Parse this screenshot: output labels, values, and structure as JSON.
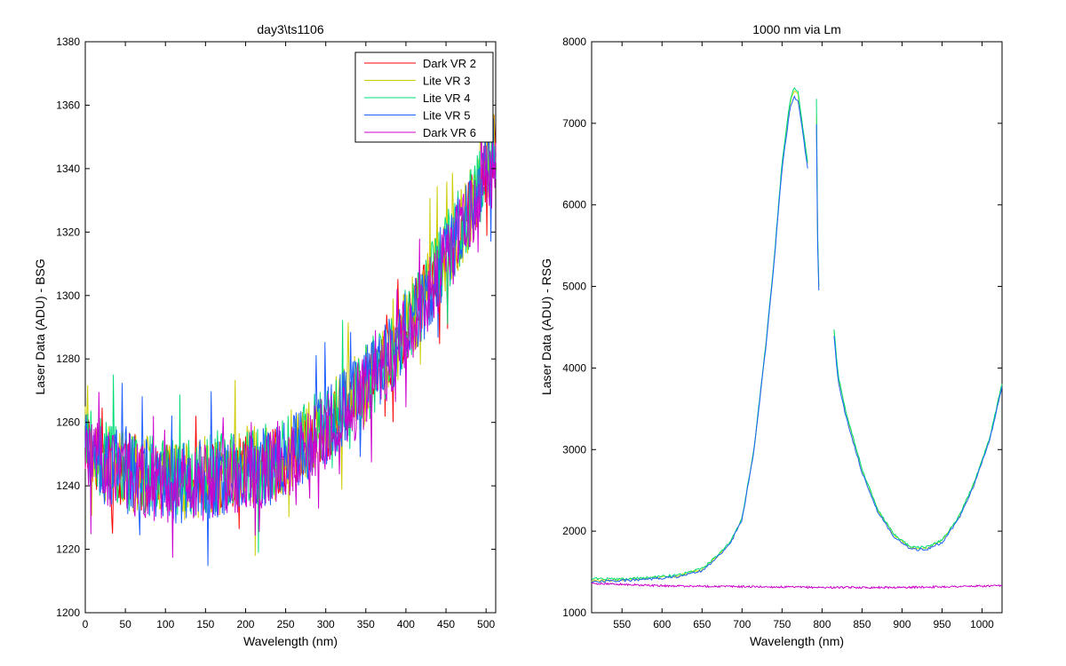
{
  "chart_data": [
    {
      "type": "line",
      "title": "day3\\ts1106",
      "xlabel": "Wavelength (nm)",
      "ylabel": "Laser Data (ADU) - BSG",
      "xlim": [
        0,
        512
      ],
      "ylim": [
        1200,
        1380
      ],
      "xticks": [
        0,
        50,
        100,
        150,
        200,
        250,
        300,
        350,
        400,
        450,
        500
      ],
      "yticks": [
        1200,
        1220,
        1240,
        1260,
        1280,
        1300,
        1320,
        1340,
        1360,
        1380
      ],
      "grid": false,
      "legend": "top-right",
      "x_base": [
        0,
        25,
        50,
        75,
        100,
        125,
        150,
        175,
        200,
        225,
        250,
        275,
        300,
        325,
        350,
        375,
        400,
        425,
        450,
        475,
        500,
        512
      ],
      "series": [
        {
          "name": "Dark VR 2",
          "color": "#ff0000",
          "noise": 11,
          "seed": 2,
          "y_base": [
            1252,
            1247,
            1244,
            1242,
            1242,
            1242,
            1243,
            1244,
            1245,
            1246,
            1249,
            1253,
            1258,
            1264,
            1271,
            1279,
            1289,
            1300,
            1312,
            1324,
            1339,
            1345
          ]
        },
        {
          "name": "Lite VR 3",
          "color": "#cccc00",
          "noise": 13,
          "seed": 3,
          "y_base": [
            1253,
            1248,
            1245,
            1243,
            1242,
            1242,
            1243,
            1244,
            1246,
            1247,
            1250,
            1254,
            1259,
            1265,
            1272,
            1280,
            1290,
            1301,
            1313,
            1325,
            1340,
            1346
          ]
        },
        {
          "name": "Lite VR 4",
          "color": "#00dd77",
          "noise": 13,
          "seed": 4,
          "y_base": [
            1253,
            1248,
            1245,
            1243,
            1243,
            1243,
            1244,
            1245,
            1246,
            1247,
            1250,
            1254,
            1259,
            1265,
            1272,
            1280,
            1290,
            1301,
            1313,
            1325,
            1340,
            1346
          ]
        },
        {
          "name": "Lite VR 5",
          "color": "#1f5fff",
          "noise": 13,
          "seed": 5,
          "y_base": [
            1252,
            1247,
            1244,
            1242,
            1241,
            1241,
            1242,
            1243,
            1245,
            1246,
            1249,
            1253,
            1258,
            1264,
            1271,
            1279,
            1289,
            1300,
            1312,
            1324,
            1339,
            1345
          ]
        },
        {
          "name": "Dark VR 6",
          "color": "#cc00cc",
          "noise": 12,
          "seed": 6,
          "y_base": [
            1251,
            1246,
            1243,
            1241,
            1240,
            1240,
            1241,
            1242,
            1244,
            1245,
            1248,
            1252,
            1257,
            1263,
            1270,
            1278,
            1288,
            1299,
            1311,
            1323,
            1338,
            1344
          ]
        }
      ]
    },
    {
      "type": "line",
      "title": "1000 nm via Lm",
      "xlabel": "Wavelength (nm)",
      "ylabel": "Laser Data (ADU) - RSG",
      "xlim": [
        512,
        1025
      ],
      "ylim": [
        1000,
        8000
      ],
      "xticks": [
        550,
        600,
        650,
        700,
        750,
        800,
        850,
        900,
        950,
        1000
      ],
      "yticks": [
        1000,
        2000,
        3000,
        4000,
        5000,
        6000,
        7000,
        8000
      ],
      "grid": false,
      "legend": "none",
      "series": [
        {
          "color": "#ccdd00",
          "segments": [
            {
              "x": [
                512,
                540,
                580,
                620,
                650,
                670,
                685,
                700,
                715,
                730,
                740,
                750,
                760,
                765,
                770,
                775,
                782
              ],
              "y": [
                1400,
                1400,
                1420,
                1450,
                1530,
                1700,
                1850,
                2150,
                3000,
                4300,
                5300,
                6500,
                7250,
                7400,
                7350,
                7000,
                6500
              ]
            },
            {
              "x": [
                793,
                794,
                796
              ],
              "y": [
                7100,
                5800,
                5000
              ]
            },
            {
              "x": [
                815,
                820,
                830,
                850,
                870,
                890,
                910,
                930,
                950,
                970,
                990,
                1010,
                1025
              ],
              "y": [
                4450,
                3900,
                3450,
                2750,
                2250,
                1950,
                1800,
                1790,
                1880,
                2150,
                2580,
                3150,
                3800
              ]
            }
          ]
        },
        {
          "color": "#00dd77",
          "segments": [
            {
              "x": [
                512,
                540,
                580,
                620,
                650,
                670,
                685,
                700,
                715,
                730,
                740,
                750,
                760,
                765,
                770,
                775,
                782
              ],
              "y": [
                1420,
                1410,
                1430,
                1460,
                1540,
                1710,
                1860,
                2160,
                3010,
                4320,
                5320,
                6520,
                7280,
                7430,
                7380,
                7020,
                6520
              ]
            },
            {
              "x": [
                793,
                794,
                796
              ],
              "y": [
                7300,
                5900,
                5000
              ]
            },
            {
              "x": [
                815,
                820,
                830,
                850,
                870,
                890,
                910,
                930,
                950,
                970,
                990,
                1010,
                1025
              ],
              "y": [
                4480,
                3920,
                3460,
                2760,
                2260,
                1960,
                1810,
                1800,
                1890,
                2160,
                2590,
                3160,
                3810
              ]
            }
          ]
        },
        {
          "color": "#1f5fff",
          "segments": [
            {
              "x": [
                512,
                540,
                580,
                620,
                650,
                670,
                685,
                700,
                715,
                730,
                740,
                750,
                760,
                765,
                770,
                775,
                782
              ],
              "y": [
                1380,
                1390,
                1410,
                1440,
                1510,
                1690,
                1840,
                2140,
                2990,
                4280,
                5280,
                6450,
                7180,
                7320,
                7280,
                6950,
                6450
              ]
            },
            {
              "x": [
                793,
                794,
                796
              ],
              "y": [
                7000,
                5700,
                4950
              ]
            },
            {
              "x": [
                815,
                820,
                830,
                850,
                870,
                890,
                910,
                930,
                950,
                970,
                990,
                1010,
                1025
              ],
              "y": [
                4380,
                3850,
                3400,
                2720,
                2230,
                1930,
                1780,
                1770,
                1860,
                2130,
                2560,
                3130,
                3780
              ]
            }
          ]
        },
        {
          "color": "#cc00cc",
          "noise": 12,
          "segments": [
            {
              "x": [
                512,
                600,
                700,
                800,
                900,
                1025
              ],
              "y": [
                1360,
                1330,
                1320,
                1310,
                1310,
                1330
              ]
            }
          ]
        }
      ]
    }
  ]
}
